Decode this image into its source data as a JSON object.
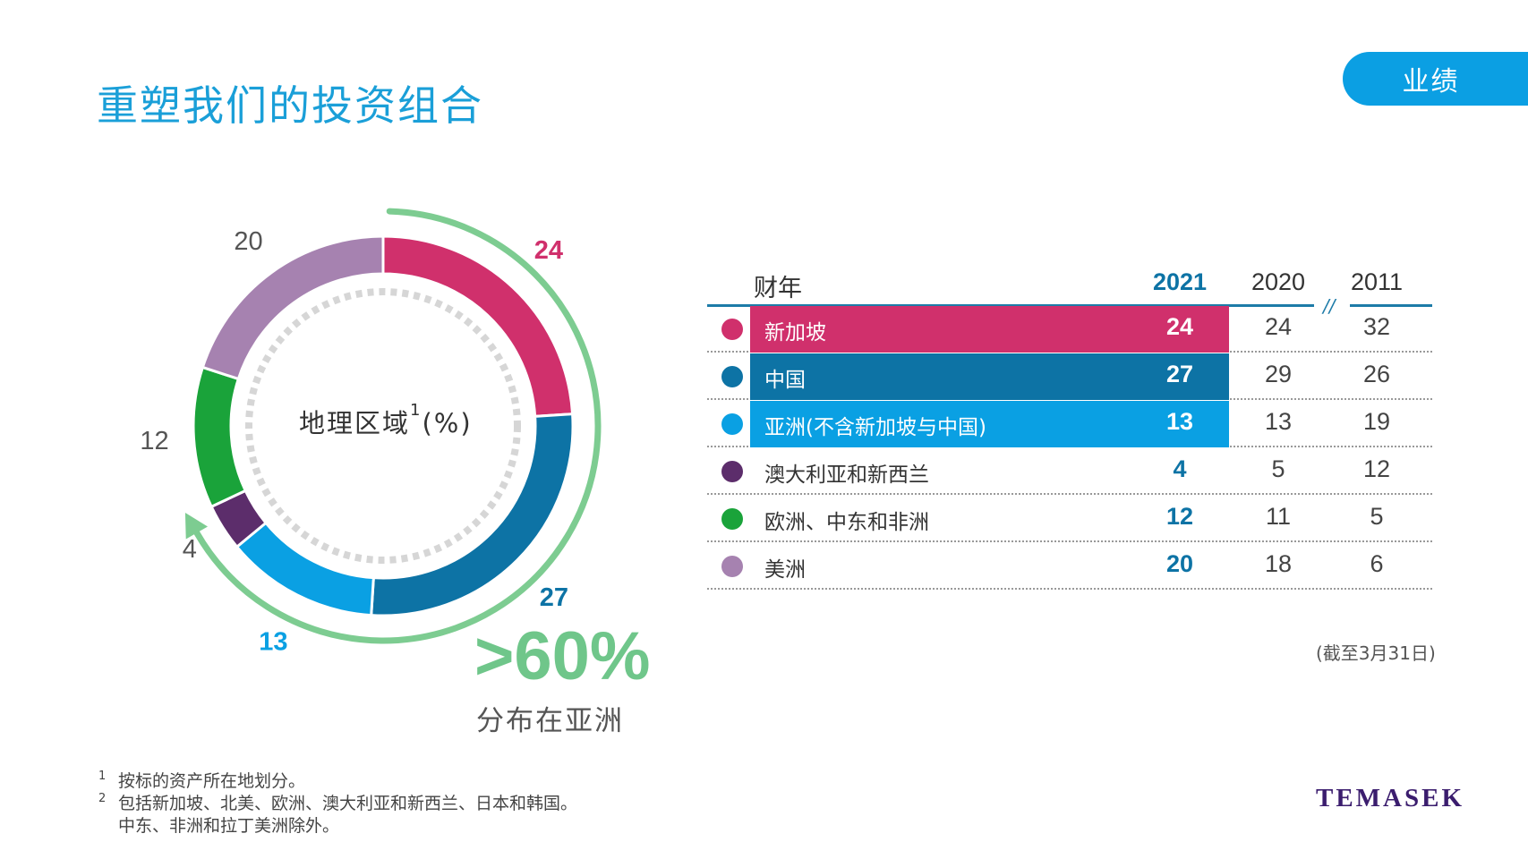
{
  "page": {
    "title": "重塑我们的投资组合",
    "badge": "业绩",
    "center_label": "地理区域",
    "center_sup": "1",
    "center_unit": "(%)",
    "highlight_value": ">60%",
    "highlight_text": "分布在亚洲",
    "as_of": "(截至3月31日)",
    "logo": "TEMASEK",
    "footnotes": [
      {
        "num": "1",
        "lines": [
          "按标的资产所在地划分。"
        ]
      },
      {
        "num": "2",
        "lines": [
          "包括新加坡、北美、欧洲、澳大利亚和新西兰、日本和韩国。",
          "中东、非洲和拉丁美洲除外。"
        ]
      }
    ]
  },
  "table": {
    "header_label": "财年",
    "years": [
      "2021",
      "2020",
      "2011"
    ],
    "break_mark": "//",
    "rows": [
      {
        "name": "新加坡",
        "v2021": "24",
        "v2020": "24",
        "v2011": "32"
      },
      {
        "name": "中国",
        "v2021": "27",
        "v2020": "29",
        "v2011": "26"
      },
      {
        "name": "亚洲(不含新加坡与中国)",
        "v2021": "13",
        "v2020": "13",
        "v2011": "19"
      },
      {
        "name": "澳大利亚和新西兰",
        "v2021": "4",
        "v2020": "5",
        "v2011": "12"
      },
      {
        "name": "欧洲、中东和非洲",
        "v2021": "12",
        "v2020": "11",
        "v2011": "5"
      },
      {
        "name": "美洲",
        "v2021": "20",
        "v2020": "18",
        "v2011": "6"
      }
    ]
  },
  "chart_data": {
    "type": "pie",
    "variant": "donut",
    "categories": [
      "新加坡",
      "中国",
      "亚洲(不含新加坡与中国)",
      "澳大利亚和新西兰",
      "欧洲、中东和非洲",
      "美洲"
    ],
    "values": [
      24,
      27,
      13,
      4,
      12,
      20
    ],
    "labels": [
      "24",
      "27",
      "13",
      "4",
      "12",
      "20"
    ],
    "colors": [
      "#d0306c",
      "#0d73a5",
      "#0aa0e3",
      "#5c2d6b",
      "#1aa33a",
      "#a682b0"
    ],
    "label_colors": [
      "#d0306c",
      "#0d73a5",
      "#0aa0e3",
      "#555555",
      "#555555",
      "#555555"
    ],
    "bold_labels": [
      true,
      true,
      true,
      false,
      false,
      false
    ],
    "arrow_color": "#7dcc91"
  }
}
